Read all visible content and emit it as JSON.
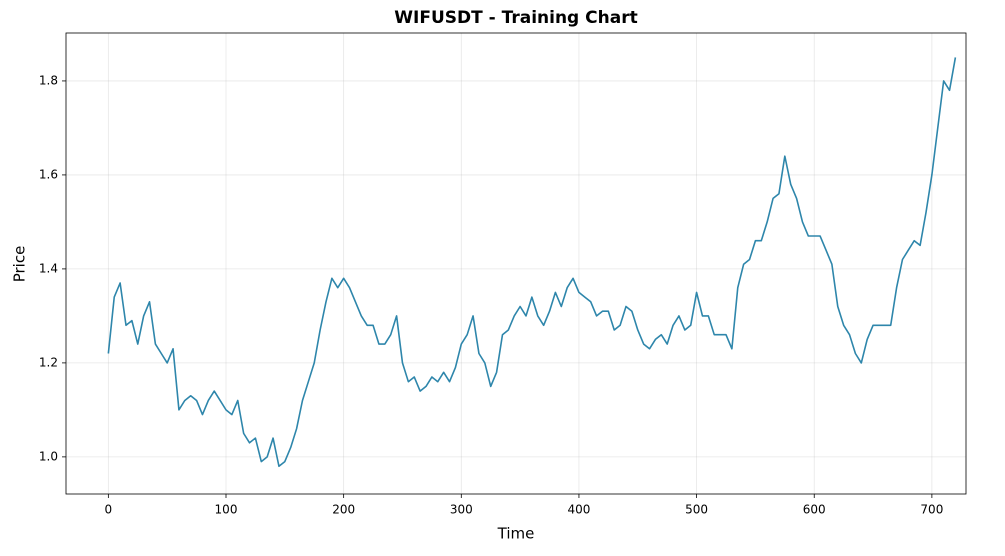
{
  "chart_data": {
    "type": "line",
    "title": "WIFUSDT - Training Chart",
    "x_label": "Time",
    "y_label": "Price",
    "x": [
      0,
      5,
      10,
      15,
      20,
      25,
      30,
      35,
      40,
      45,
      50,
      55,
      60,
      65,
      70,
      75,
      80,
      85,
      90,
      95,
      100,
      105,
      110,
      115,
      120,
      125,
      130,
      135,
      140,
      145,
      150,
      155,
      160,
      165,
      170,
      175,
      180,
      185,
      190,
      195,
      200,
      205,
      210,
      215,
      220,
      225,
      230,
      235,
      240,
      245,
      250,
      255,
      260,
      265,
      270,
      275,
      280,
      285,
      290,
      295,
      300,
      305,
      310,
      315,
      320,
      325,
      330,
      335,
      340,
      345,
      350,
      355,
      360,
      365,
      370,
      375,
      380,
      385,
      390,
      395,
      400,
      405,
      410,
      415,
      420,
      425,
      430,
      435,
      440,
      445,
      450,
      455,
      460,
      465,
      470,
      475,
      480,
      485,
      490,
      495,
      500,
      505,
      510,
      515,
      520,
      525,
      530,
      535,
      540,
      545,
      550,
      555,
      560,
      565,
      570,
      575,
      580,
      585,
      590,
      595,
      600,
      605,
      610,
      615,
      620,
      625,
      630,
      635,
      640,
      645,
      650,
      655,
      660,
      665,
      670,
      675,
      680,
      685,
      690,
      695,
      700,
      705,
      710,
      715,
      720
    ],
    "series": [
      {
        "name": "Price",
        "color": "#2e86ab",
        "values": [
          1.22,
          1.34,
          1.37,
          1.28,
          1.29,
          1.24,
          1.3,
          1.33,
          1.24,
          1.22,
          1.2,
          1.23,
          1.1,
          1.12,
          1.13,
          1.12,
          1.09,
          1.12,
          1.14,
          1.12,
          1.1,
          1.09,
          1.12,
          1.05,
          1.03,
          1.04,
          0.99,
          1.0,
          1.04,
          0.98,
          0.99,
          1.02,
          1.06,
          1.12,
          1.16,
          1.2,
          1.27,
          1.33,
          1.38,
          1.36,
          1.38,
          1.36,
          1.33,
          1.3,
          1.28,
          1.28,
          1.24,
          1.24,
          1.26,
          1.3,
          1.2,
          1.16,
          1.17,
          1.14,
          1.15,
          1.17,
          1.16,
          1.18,
          1.16,
          1.19,
          1.24,
          1.26,
          1.3,
          1.22,
          1.2,
          1.15,
          1.18,
          1.26,
          1.27,
          1.3,
          1.32,
          1.3,
          1.34,
          1.3,
          1.28,
          1.31,
          1.35,
          1.32,
          1.36,
          1.38,
          1.35,
          1.34,
          1.33,
          1.3,
          1.31,
          1.31,
          1.27,
          1.28,
          1.32,
          1.31,
          1.27,
          1.24,
          1.23,
          1.25,
          1.26,
          1.24,
          1.28,
          1.3,
          1.27,
          1.28,
          1.35,
          1.3,
          1.3,
          1.26,
          1.26,
          1.26,
          1.23,
          1.36,
          1.41,
          1.42,
          1.46,
          1.46,
          1.5,
          1.55,
          1.56,
          1.64,
          1.58,
          1.55,
          1.5,
          1.47,
          1.47,
          1.47,
          1.44,
          1.41,
          1.32,
          1.28,
          1.26,
          1.22,
          1.2,
          1.25,
          1.28,
          1.28,
          1.28,
          1.28,
          1.36,
          1.42,
          1.44,
          1.46,
          1.45,
          1.52,
          1.6,
          1.7,
          1.8,
          1.78,
          1.85
        ]
      }
    ],
    "xlim": [
      -36,
      729
    ],
    "ylim": [
      0.921,
      1.902
    ],
    "xticks": [
      0,
      100,
      200,
      300,
      400,
      500,
      600,
      700
    ],
    "yticks": [
      {
        "value": 1.0,
        "label": "1.0"
      },
      {
        "value": 1.2,
        "label": "1.2"
      },
      {
        "value": 1.4,
        "label": "1.4"
      },
      {
        "value": 1.6,
        "label": "1.6"
      },
      {
        "value": 1.8,
        "label": "1.8"
      }
    ],
    "grid": true
  }
}
